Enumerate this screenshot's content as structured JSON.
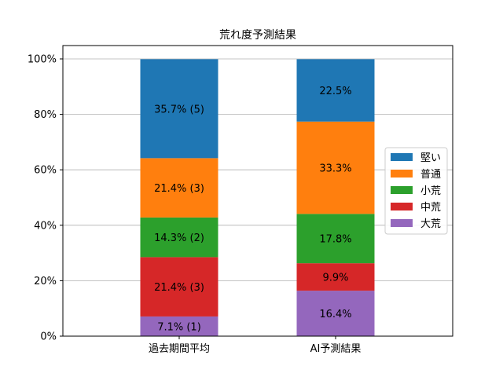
{
  "chart_data": {
    "type": "bar",
    "stacked": true,
    "title": "荒れ度予測結果",
    "xlabel": "",
    "ylabel": "",
    "ylim": [
      0,
      100
    ],
    "y_ticks": [
      "0%",
      "20%",
      "40%",
      "60%",
      "80%",
      "100%"
    ],
    "grid": "y",
    "legend": "center-right",
    "categories": [
      "過去期間平均",
      "AI予測結果"
    ],
    "series": [
      {
        "name": "大荒",
        "color": "#9467bd",
        "values": [
          7.1,
          16.4
        ],
        "labels": [
          "7.1% (1)",
          "16.4%"
        ]
      },
      {
        "name": "中荒",
        "color": "#d62728",
        "values": [
          21.4,
          9.9
        ],
        "labels": [
          "21.4% (3)",
          "9.9%"
        ]
      },
      {
        "name": "小荒",
        "color": "#2ca02c",
        "values": [
          14.3,
          17.8
        ],
        "labels": [
          "14.3% (2)",
          "17.8%"
        ]
      },
      {
        "name": "普通",
        "color": "#ff7f0e",
        "values": [
          21.4,
          33.3
        ],
        "labels": [
          "21.4% (3)",
          "33.3%"
        ]
      },
      {
        "name": "堅い",
        "color": "#1f77b4",
        "values": [
          35.7,
          22.5
        ],
        "labels": [
          "35.7% (5)",
          "22.5%"
        ]
      }
    ],
    "legend_order": [
      "堅い",
      "普通",
      "小荒",
      "中荒",
      "大荒"
    ]
  }
}
